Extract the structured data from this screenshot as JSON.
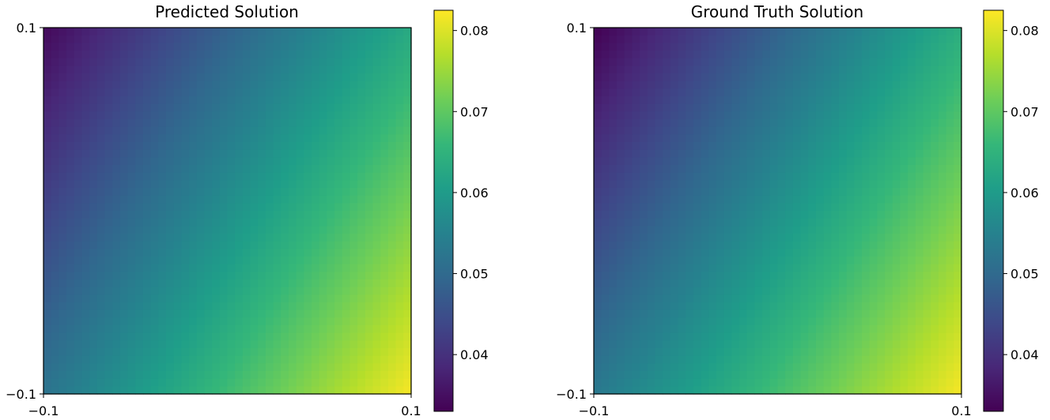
{
  "chart_data": [
    {
      "type": "heatmap",
      "title": "Predicted Solution",
      "x_ticks": [
        "−0.1",
        "0.1"
      ],
      "y_ticks": [
        "0.1",
        "−0.1"
      ],
      "xlim": [
        -0.1,
        0.1
      ],
      "ylim": [
        -0.1,
        0.1
      ],
      "corners": {
        "top_left": 0.034,
        "top_right": 0.063,
        "bottom_left": 0.052,
        "bottom_right": 0.082
      },
      "colormap": "viridis",
      "colorbar": {
        "range": [
          0.033,
          0.0825
        ],
        "ticks": [
          "0.04",
          "0.05",
          "0.06",
          "0.07",
          "0.08"
        ]
      }
    },
    {
      "type": "heatmap",
      "title": "Ground Truth Solution",
      "x_ticks": [
        "−0.1",
        "0.1"
      ],
      "y_ticks": [
        "0.1",
        "−0.1"
      ],
      "xlim": [
        -0.1,
        0.1
      ],
      "ylim": [
        -0.1,
        0.1
      ],
      "corners": {
        "top_left": 0.033,
        "top_right": 0.064,
        "bottom_left": 0.053,
        "bottom_right": 0.082
      },
      "colormap": "viridis",
      "colorbar": {
        "range": [
          0.033,
          0.0825
        ],
        "ticks": [
          "0.04",
          "0.05",
          "0.06",
          "0.07",
          "0.08"
        ]
      }
    }
  ]
}
